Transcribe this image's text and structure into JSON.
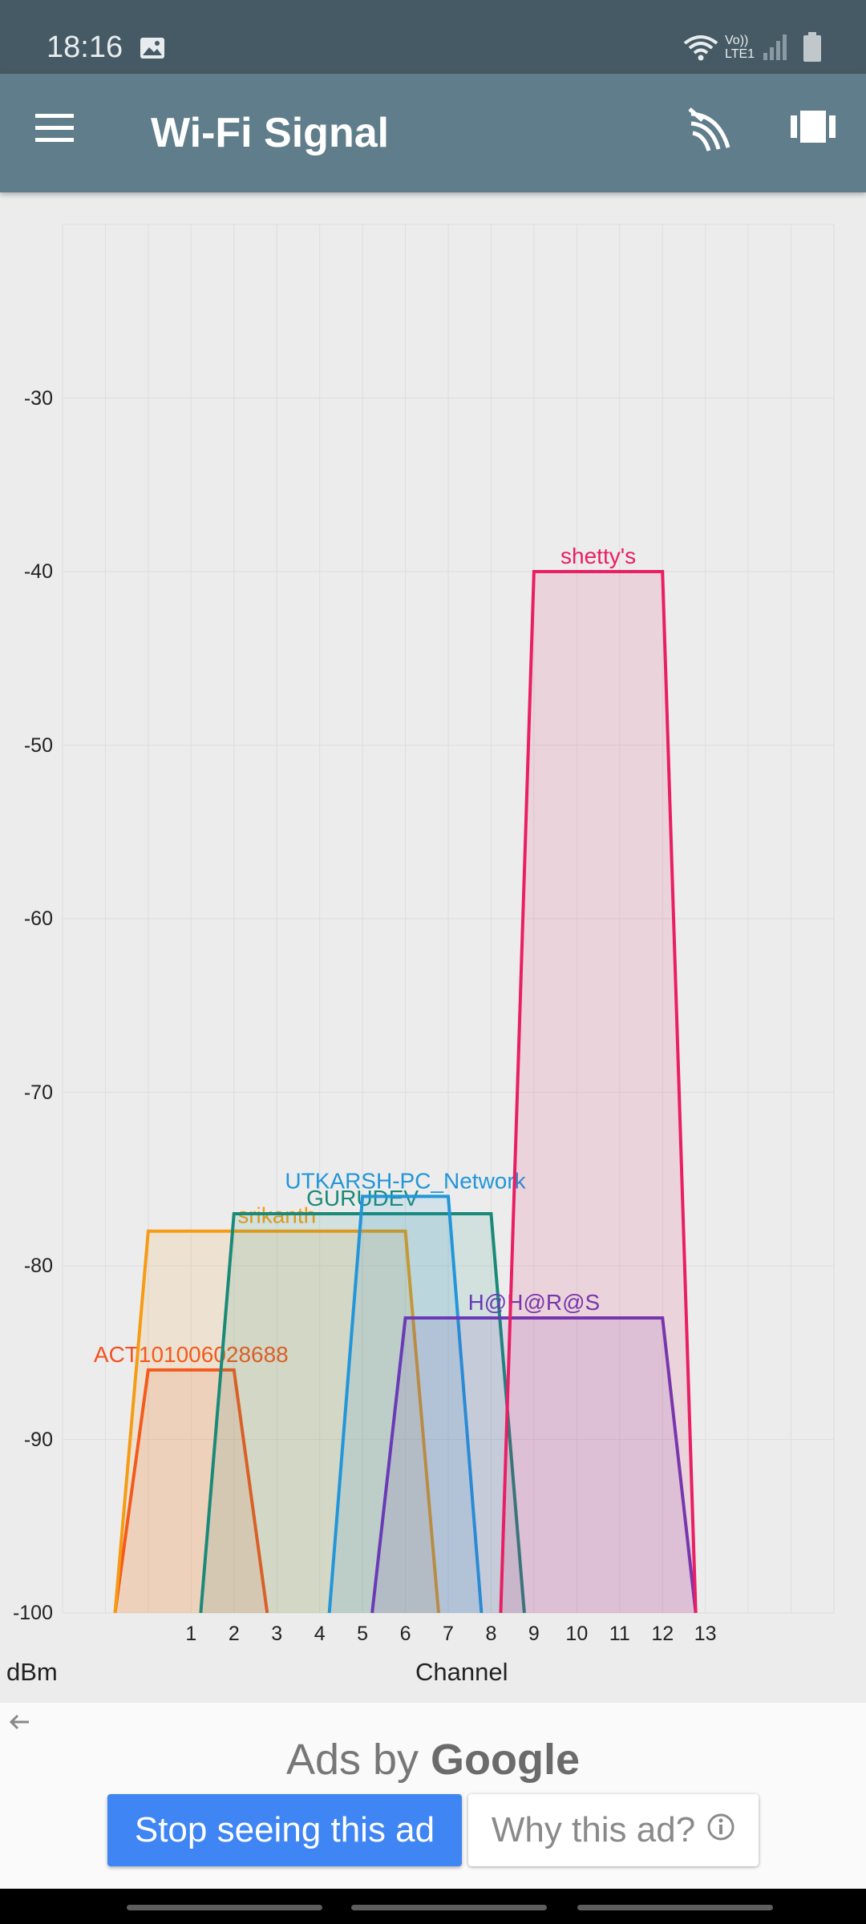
{
  "status_bar": {
    "time": "18:16",
    "volte_top": "Vo))",
    "volte_bottom": "LTE1",
    "icons": [
      "image-icon",
      "wifi-icon",
      "signal-icon",
      "battery-icon"
    ]
  },
  "app_bar": {
    "title": "Wi-Fi Signal",
    "menu_icon": "hamburger-menu-icon",
    "scan_icon": "wifi-scan-icon",
    "view_icon": "view-carousel-icon",
    "background": "#607d8b"
  },
  "chart_data": {
    "type": "area",
    "xlabel": "Channel",
    "ylabel": "dBm",
    "x_ticks": [
      "1",
      "2",
      "3",
      "4",
      "5",
      "6",
      "7",
      "8",
      "9",
      "10",
      "11",
      "12",
      "13"
    ],
    "y_ticks": [
      "-30",
      "-40",
      "-50",
      "-60",
      "-70",
      "-80",
      "-90",
      "-100"
    ],
    "xlim": [
      -2,
      16
    ],
    "ylim": [
      -100,
      -20
    ],
    "grid": true,
    "series": [
      {
        "name": "ACT101006028688",
        "color": "#f4511e",
        "channel_start": 0,
        "channel_end": 2,
        "signal_dbm": -86
      },
      {
        "name": "srikanth",
        "color": "#f59b14",
        "channel_start": 0,
        "channel_end": 6,
        "signal_dbm": -78
      },
      {
        "name": "GURUDEV",
        "color": "#1a8a78",
        "channel_start": 2,
        "channel_end": 8,
        "signal_dbm": -77
      },
      {
        "name": "UTKARSH-PC_Network",
        "color": "#2196d9",
        "channel_start": 5,
        "channel_end": 7,
        "signal_dbm": -76
      },
      {
        "name": "H@H@R@S",
        "color": "#6a3ab7",
        "channel_start": 6,
        "channel_end": 12,
        "signal_dbm": -83
      },
      {
        "name": "shetty's",
        "color": "#e91e63",
        "channel_start": 9,
        "channel_end": 12,
        "signal_dbm": -40
      }
    ]
  },
  "ad": {
    "back_icon": "arrow-left-icon",
    "ads_by": "Ads by",
    "google": "Google",
    "stop_label": "Stop seeing this ad",
    "why_label": "Why this ad?",
    "info_icon": "info-icon"
  }
}
